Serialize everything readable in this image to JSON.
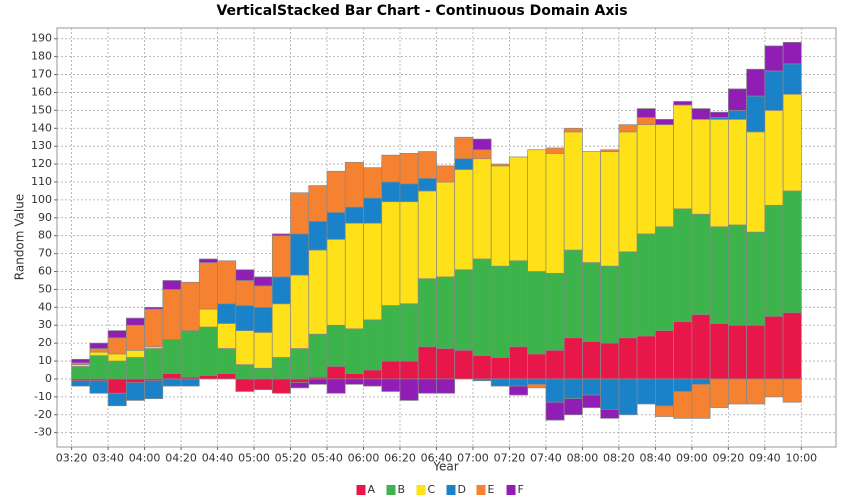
{
  "chart_data": {
    "type": "stacked_bar",
    "title": "VerticalStacked Bar Chart - Continuous Domain Axis",
    "x_label": "Year",
    "y_label": "Random Value",
    "x": [
      "03:20",
      "03:30",
      "03:40",
      "03:50",
      "04:00",
      "04:10",
      "04:20",
      "04:30",
      "04:40",
      "04:50",
      "05:00",
      "05:10",
      "05:20",
      "05:30",
      "05:40",
      "05:50",
      "06:00",
      "06:10",
      "06:20",
      "06:30",
      "06:40",
      "06:50",
      "07:00",
      "07:10",
      "07:20",
      "07:30",
      "07:40",
      "07:50",
      "08:00",
      "08:10",
      "08:20",
      "08:30",
      "08:40",
      "08:50",
      "09:00",
      "09:10",
      "09:20",
      "09:30",
      "09:40",
      "09:50"
    ],
    "bar_width_minutes": 10,
    "series": [
      {
        "name": "A",
        "color": "#e8174a",
        "values": [
          -1,
          -1,
          -8,
          -2,
          -1,
          3,
          1,
          2,
          3,
          -7,
          -6,
          -8,
          -2,
          1,
          7,
          3,
          5,
          10,
          10,
          18,
          17,
          16,
          13,
          12,
          18,
          14,
          16,
          23,
          21,
          20,
          23,
          24,
          27,
          32,
          36,
          31,
          30,
          30,
          35,
          37
        ]
      },
      {
        "name": "B",
        "color": "#3cb44b",
        "values": [
          7,
          13,
          10,
          12,
          17,
          19,
          26,
          27,
          14,
          8,
          6,
          12,
          17,
          24,
          23,
          25,
          28,
          31,
          32,
          38,
          40,
          45,
          54,
          51,
          48,
          46,
          43,
          49,
          44,
          43,
          48,
          57,
          58,
          63,
          56,
          54,
          56,
          52,
          62,
          68
        ]
      },
      {
        "name": "C",
        "color": "#ffe119",
        "values": [
          1,
          2,
          4,
          4,
          1,
          0,
          0,
          10,
          14,
          19,
          20,
          30,
          41,
          47,
          48,
          59,
          54,
          58,
          57,
          49,
          53,
          56,
          56,
          56,
          58,
          68,
          67,
          66,
          62,
          64,
          67,
          61,
          57,
          58,
          53,
          60,
          59,
          56,
          53,
          54
        ]
      },
      {
        "name": "D",
        "color": "#1a82c8",
        "values": [
          -3,
          -7,
          -7,
          -10,
          -10,
          -4,
          -4,
          0,
          11,
          14,
          14,
          15,
          23,
          16,
          15,
          9,
          14,
          11,
          10,
          7,
          0,
          6,
          -1,
          -4,
          -4,
          -3,
          -13,
          -11,
          -9,
          -17,
          -20,
          -14,
          -15,
          -7,
          -3,
          1,
          5,
          20,
          22,
          17
        ]
      },
      {
        "name": "E",
        "color": "#f58231",
        "values": [
          1,
          2,
          9,
          14,
          21,
          28,
          27,
          26,
          24,
          14,
          12,
          23,
          23,
          20,
          23,
          25,
          17,
          15,
          17,
          15,
          9,
          12,
          5,
          1,
          0,
          -2,
          3,
          2,
          0,
          1,
          4,
          4,
          -6,
          -15,
          -19,
          -16,
          -14,
          -14,
          -10,
          -13
        ]
      },
      {
        "name": "F",
        "color": "#911eb4",
        "values": [
          2,
          3,
          4,
          4,
          1,
          5,
          0,
          2,
          0,
          6,
          5,
          1,
          -3,
          -3,
          -8,
          -3,
          -4,
          -7,
          -12,
          -8,
          -8,
          0,
          6,
          0,
          -5,
          0,
          -10,
          -9,
          -7,
          -5,
          0,
          5,
          3,
          2,
          6,
          3,
          12,
          15,
          14,
          12
        ]
      }
    ],
    "xlim": [
      "03:12",
      "10:19"
    ],
    "xticks": [
      "03:20",
      "03:40",
      "04:00",
      "04:20",
      "04:40",
      "05:00",
      "05:20",
      "05:40",
      "06:00",
      "06:20",
      "06:40",
      "07:00",
      "07:20",
      "07:40",
      "08:00",
      "08:20",
      "08:40",
      "09:00",
      "09:20",
      "09:40",
      "10:00"
    ],
    "ylim": [
      -38,
      196
    ],
    "yticks": [
      -30,
      -20,
      -10,
      0,
      10,
      20,
      30,
      40,
      50,
      60,
      70,
      80,
      90,
      100,
      110,
      120,
      130,
      140,
      150,
      160,
      170,
      180,
      190
    ],
    "grid": true,
    "legend": "bottom"
  }
}
